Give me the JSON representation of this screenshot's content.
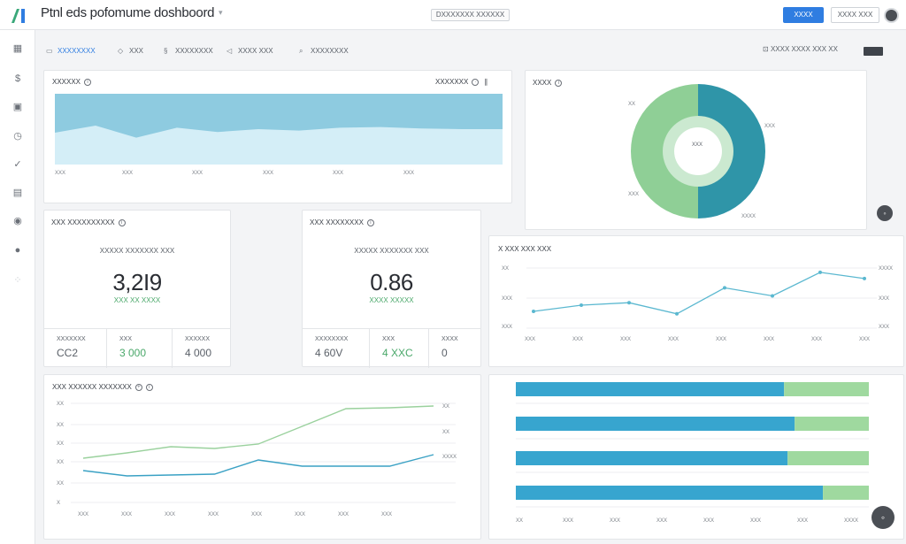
{
  "header": {
    "title": "Ptnl eds pofomume doshboord",
    "center_chip": "DXXXXXXX XXXXXX",
    "primary_button": "XXXX",
    "secondary_button": "XXXX XXX"
  },
  "sidebar": {
    "icons": [
      "grid-icon",
      "dollar-icon",
      "calendar-icon",
      "clock-icon",
      "check-icon",
      "image-icon",
      "circle-icon",
      "globe-icon",
      "dots-icon"
    ]
  },
  "toolbar": {
    "tabs": [
      {
        "label": "XXXXXXXX",
        "icon": "grid-icon",
        "active": true
      },
      {
        "label": "XXX",
        "icon": "tag-icon",
        "active": false
      },
      {
        "label": "XXXXXXXX",
        "icon": "link-icon",
        "active": false
      },
      {
        "label": "XXXX XXX",
        "icon": "send-icon",
        "active": false
      },
      {
        "label": "XXXXXXXX",
        "icon": "search-icon",
        "active": false
      }
    ],
    "right_text": "XXXX XXXX XXX XX"
  },
  "area_card": {
    "title": "XXXXXX",
    "right_label": "XXXXXXX",
    "x_labels": [
      "XXX",
      "XXX",
      "XXX",
      "XXX",
      "XXX",
      "XXX"
    ],
    "colors": {
      "top": "#8ecbe0",
      "bottom": "#d4eef7"
    }
  },
  "donut_card": {
    "title": "XXXX",
    "center_label": "XXX",
    "labels": [
      "XX",
      "XXX",
      "XXX",
      "XXXX"
    ],
    "colors": {
      "left": "#8fcf96",
      "right": "#2f95a8",
      "ring": "#cbe9d0"
    }
  },
  "kpi_left": {
    "title": "XXX XXXXXXXXXX",
    "subtitle": "XXXXX XXXXXXX XXX",
    "value": "3,2I9",
    "delta": "XXX XX XXXX",
    "footer": [
      {
        "label": "XXXXXXX",
        "value": "CC2",
        "green": false
      },
      {
        "label": "XXX",
        "value": "3 000",
        "green": true
      },
      {
        "label": "XXXXXX",
        "value": "4 000",
        "green": false
      }
    ]
  },
  "kpi_mid": {
    "title": "XXX XXXXXXXX",
    "subtitle": "XXXXX XXXXXXX XXX",
    "value": "0.86",
    "delta": "XXXX XXXXX",
    "footer": [
      {
        "label": "XXXXXXXX",
        "value": "4 60V",
        "green": false
      },
      {
        "label": "XXX",
        "value": "4 XXC",
        "green": true
      },
      {
        "label": "XXXX",
        "value": "0",
        "green": false
      }
    ]
  },
  "line_card": {
    "title": "X XXX XXX XXX",
    "y_labels_left": [
      "XX",
      "XXX",
      "XXX"
    ],
    "y_labels_right": [
      "XXXX",
      "XXX",
      "XXX"
    ],
    "x_labels": [
      "XXX",
      "XXX",
      "XXX",
      "XXX",
      "XXX",
      "XXX",
      "XXX",
      "XXX"
    ],
    "color": "#5bb8d0"
  },
  "multi_line_card": {
    "title": "XXX XXXXXX XXXXXXX",
    "y_labels": [
      "XX",
      "XX",
      "XX",
      "XX",
      "XX",
      "X"
    ],
    "right_labels": [
      "XX",
      "XX",
      "XXXX"
    ],
    "x_labels": [
      "XXX",
      "XXX",
      "XXX",
      "XXX",
      "XXX",
      "XXX",
      "XXX",
      "XXX"
    ],
    "colors": {
      "green": "#9ad19d",
      "blue": "#3aa1c4"
    }
  },
  "bar_card": {
    "x_labels": [
      "XX",
      "XXX",
      "XXX",
      "XXX",
      "XXX",
      "XXX",
      "XXX",
      "XXXX"
    ],
    "colors": {
      "blue": "#37a5cf",
      "green": "#9fd99f"
    }
  },
  "chart_data": [
    {
      "type": "area",
      "series": [
        {
          "values": [
            0.55,
            0.45,
            0.62,
            0.48,
            0.54,
            0.5,
            0.52,
            0.48,
            0.47,
            0.49,
            0.5,
            0.5
          ]
        }
      ]
    },
    {
      "type": "pie",
      "values": [
        50,
        50
      ]
    },
    {
      "type": "line",
      "series": [
        {
          "values": [
            0.3,
            0.4,
            0.44,
            0.26,
            0.68,
            0.55,
            0.93,
            0.83
          ]
        }
      ]
    },
    {
      "type": "line",
      "series": [
        {
          "values": [
            0.5,
            0.56,
            0.63,
            0.61,
            0.66,
            0.86,
            1.06,
            1.07,
            1.09
          ]
        },
        {
          "values": [
            0.36,
            0.3,
            0.31,
            0.32,
            0.48,
            0.41,
            0.41,
            0.41,
            0.54
          ]
        }
      ]
    },
    {
      "type": "bar",
      "series": [
        {
          "values": [
            0.76,
            0.79,
            0.77,
            0.87
          ]
        },
        {
          "values": [
            0.24,
            0.21,
            0.23,
            0.13
          ]
        }
      ]
    }
  ]
}
